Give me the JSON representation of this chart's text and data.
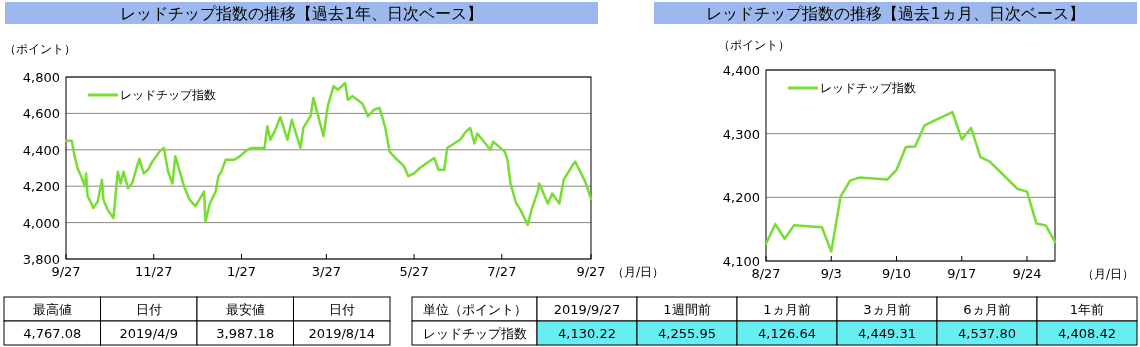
{
  "chart_data": [
    {
      "type": "line",
      "title": "レッドチップ指数の推移【過去1年、日次ベース】",
      "ylabel": "（ポイント）",
      "xlabel": "（月/日）",
      "x": [
        "2018-09-27",
        "2018-10-01",
        "2018-10-03",
        "2018-10-05",
        "2018-10-08",
        "2018-10-10",
        "2018-10-11",
        "2018-10-12",
        "2018-10-14",
        "2018-10-16",
        "2018-10-19",
        "2018-10-22",
        "2018-10-23",
        "2018-10-26",
        "2018-10-30",
        "2018-11-02",
        "2018-11-04",
        "2018-11-06",
        "2018-11-09",
        "2018-11-12",
        "2018-11-15",
        "2018-11-17",
        "2018-11-20",
        "2018-11-23",
        "2018-11-26",
        "2018-12-01",
        "2018-12-04",
        "2018-12-07",
        "2018-12-10",
        "2018-12-12",
        "2018-12-18",
        "2018-12-22",
        "2018-12-26",
        "2019-01-01",
        "2019-01-02",
        "2019-01-05",
        "2019-01-09",
        "2019-01-11",
        "2019-01-13",
        "2019-01-16",
        "2019-01-22",
        "2019-01-26",
        "2019-01-31",
        "2019-02-03",
        "2019-02-12",
        "2019-02-14",
        "2019-02-16",
        "2019-02-19",
        "2019-02-23",
        "2019-02-28",
        "2019-03-03",
        "2019-03-09",
        "2019-03-11",
        "2019-03-16",
        "2019-03-18",
        "2019-03-25",
        "2019-03-28",
        "2019-04-01",
        "2019-04-04",
        "2019-04-09",
        "2019-04-11",
        "2019-04-14",
        "2019-04-21",
        "2019-04-25",
        "2019-04-29",
        "2019-05-03",
        "2019-05-07",
        "2019-05-10",
        "2019-05-14",
        "2019-05-20",
        "2019-05-23",
        "2019-05-27",
        "2019-05-31",
        "2019-06-10",
        "2019-06-13",
        "2019-06-17",
        "2019-06-19",
        "2019-06-28",
        "2019-07-02",
        "2019-07-05",
        "2019-07-08",
        "2019-07-10",
        "2019-07-19",
        "2019-07-21",
        "2019-07-29",
        "2019-07-31",
        "2019-08-02",
        "2019-08-06",
        "2019-08-09",
        "2019-08-14",
        "2019-08-17",
        "2019-08-21",
        "2019-08-22",
        "2019-08-28",
        "2019-08-31",
        "2019-09-05",
        "2019-09-08",
        "2019-09-15",
        "2019-09-16",
        "2019-09-23",
        "2019-09-27"
      ],
      "series": [
        {
          "name": "レッドチップ指数",
          "color": "#77dd33",
          "values": [
            4450,
            4450,
            4365,
            4300,
            4245,
            4200,
            4270,
            4145,
            4115,
            4080,
            4115,
            4235,
            4125,
            4070,
            4025,
            4280,
            4215,
            4280,
            4190,
            4215,
            4300,
            4350,
            4270,
            4290,
            4335,
            4390,
            4410,
            4280,
            4215,
            4365,
            4200,
            4125,
            4090,
            4170,
            4005,
            4105,
            4170,
            4255,
            4280,
            4345,
            4345,
            4365,
            4400,
            4410,
            4410,
            4530,
            4455,
            4500,
            4580,
            4455,
            4565,
            4410,
            4520,
            4585,
            4685,
            4475,
            4640,
            4750,
            4730,
            4767,
            4675,
            4695,
            4655,
            4585,
            4620,
            4630,
            4520,
            4390,
            4355,
            4310,
            4255,
            4270,
            4300,
            4355,
            4290,
            4290,
            4410,
            4455,
            4500,
            4520,
            4435,
            4490,
            4400,
            4445,
            4390,
            4345,
            4215,
            4105,
            4070,
            3987,
            4080,
            4170,
            4215,
            4105,
            4160,
            4105,
            4235,
            4325,
            4335,
            4225,
            4130
          ]
        }
      ],
      "xlim": [
        "2018-09-27",
        "2019-09-27"
      ],
      "xticks": [
        {
          "value": "2018-09-27",
          "label": "9/27"
        },
        {
          "value": "2018-11-27",
          "label": "11/27"
        },
        {
          "value": "2019-01-27",
          "label": "1/27"
        },
        {
          "value": "2019-03-27",
          "label": "3/27"
        },
        {
          "value": "2019-05-27",
          "label": "5/27"
        },
        {
          "value": "2019-07-27",
          "label": "7/27"
        },
        {
          "value": "2019-09-27",
          "label": "9/27"
        }
      ],
      "ylim": [
        3800,
        4800
      ],
      "yticks": [
        {
          "value": 3800,
          "label": "3,800"
        },
        {
          "value": 4000,
          "label": "4,000"
        },
        {
          "value": 4200,
          "label": "4,200"
        },
        {
          "value": 4400,
          "label": "4,400"
        },
        {
          "value": 4600,
          "label": "4,600"
        },
        {
          "value": 4800,
          "label": "4,800"
        }
      ],
      "grid": "y",
      "legend": "top left"
    },
    {
      "type": "line",
      "title": "レッドチップ指数の推移【過去1ヵ月、日次ベース】",
      "ylabel": "（ポイント）",
      "xlabel": "（月/日）",
      "x": [
        "2019-08-27",
        "2019-08-28",
        "2019-08-29",
        "2019-08-30",
        "2019-09-02",
        "2019-09-03",
        "2019-09-04",
        "2019-09-05",
        "2019-09-06",
        "2019-09-09",
        "2019-09-10",
        "2019-09-11",
        "2019-09-12",
        "2019-09-13",
        "2019-09-16",
        "2019-09-17",
        "2019-09-18",
        "2019-09-19",
        "2019-09-20",
        "2019-09-23",
        "2019-09-24",
        "2019-09-25",
        "2019-09-26",
        "2019-09-27"
      ],
      "series": [
        {
          "name": "レッドチップ指数",
          "color": "#77dd33",
          "values": [
            4127,
            4158,
            4135,
            4156,
            4153,
            4115,
            4201,
            4226,
            4231,
            4228,
            4243,
            4279,
            4280,
            4313,
            4334,
            4291,
            4309,
            4263,
            4256,
            4213,
            4209,
            4159,
            4156,
            4130
          ]
        }
      ],
      "xlim": [
        "2019-08-27",
        "2019-09-27"
      ],
      "xticks": [
        {
          "value": "2019-08-27",
          "label": "8/27"
        },
        {
          "value": "2019-09-03",
          "label": "9/3"
        },
        {
          "value": "2019-09-10",
          "label": "9/10"
        },
        {
          "value": "2019-09-17",
          "label": "9/17"
        },
        {
          "value": "2019-09-24",
          "label": "9/24"
        }
      ],
      "ylim": [
        4100,
        4400
      ],
      "yticks": [
        {
          "value": 4100,
          "label": "4,100"
        },
        {
          "value": 4200,
          "label": "4,200"
        },
        {
          "value": 4300,
          "label": "4,300"
        },
        {
          "value": 4400,
          "label": "4,400"
        }
      ],
      "grid": "y",
      "legend": "top left"
    },
    {
      "type": "other",
      "annotations": [
        "最高値",
        "日付",
        "最安値",
        "日付",
        "4,767.08",
        "2019/4/9",
        "3,987.18",
        "2019/8/14"
      ]
    },
    {
      "type": "other",
      "annotations": [
        "単位（ポイント）",
        "2019/9/27",
        "1週間前",
        "1ヵ月前",
        "3ヵ月前",
        "6ヵ月前",
        "1年前",
        "レッドチップ指数",
        "4,130.22",
        "4,255.95",
        "4,126.64",
        "4,449.31",
        "4,537.80",
        "4,408.42"
      ]
    }
  ]
}
